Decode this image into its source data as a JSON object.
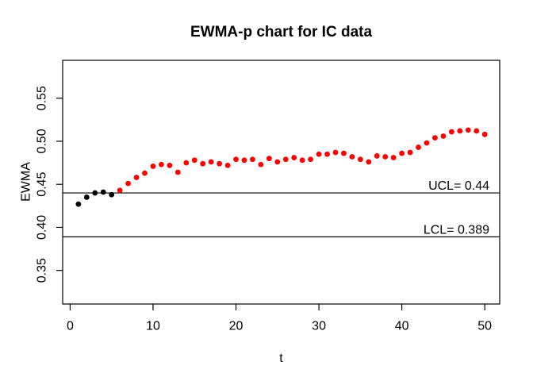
{
  "window": {
    "background": "#ffffff",
    "foreground": "#000000"
  },
  "chart_data": {
    "type": "scatter",
    "title": "EWMA-p chart for IC data",
    "xlabel": "t",
    "ylabel": "EWMA",
    "grid": false,
    "legend": "none",
    "xlim": [
      -0.9,
      51.8
    ],
    "ylim": [
      0.311,
      0.594
    ],
    "x_ticks": [
      {
        "value": 0,
        "label": "0"
      },
      {
        "value": 10,
        "label": "10"
      },
      {
        "value": 20,
        "label": "20"
      },
      {
        "value": 30,
        "label": "30"
      },
      {
        "value": 40,
        "label": "40"
      },
      {
        "value": 50,
        "label": "50"
      }
    ],
    "y_ticks": [
      {
        "value": 0.35,
        "label": "0.35"
      },
      {
        "value": 0.4,
        "label": "0.40"
      },
      {
        "value": 0.45,
        "label": "0.45"
      },
      {
        "value": 0.5,
        "label": "0.50"
      },
      {
        "value": 0.55,
        "label": "0.55"
      }
    ],
    "control_limits": {
      "ucl": {
        "value": 0.44,
        "label": "UCL= 0.44",
        "color": "#000000"
      },
      "lcl": {
        "value": 0.389,
        "label": "LCL= 0.389",
        "color": "#000000"
      }
    },
    "series": [
      {
        "name": "in-control-points",
        "color": "#000000",
        "marker": "filled-circle",
        "x": [
          1,
          2,
          3,
          4,
          5
        ],
        "y": [
          0.427,
          0.435,
          0.44,
          0.441,
          0.438
        ]
      },
      {
        "name": "signal-points",
        "color": "#ff0000",
        "marker": "filled-circle",
        "x": [
          6,
          7,
          8,
          9,
          10,
          11,
          12,
          13,
          14,
          15,
          16,
          17,
          18,
          19,
          20,
          21,
          22,
          23,
          24,
          25,
          26,
          27,
          28,
          29,
          30,
          31,
          32,
          33,
          34,
          35,
          36,
          37,
          38,
          39,
          40,
          41,
          42,
          43,
          44,
          45,
          46,
          47,
          48,
          49,
          50
        ],
        "y": [
          0.443,
          0.451,
          0.458,
          0.463,
          0.471,
          0.473,
          0.472,
          0.464,
          0.475,
          0.478,
          0.474,
          0.476,
          0.474,
          0.472,
          0.479,
          0.478,
          0.479,
          0.473,
          0.48,
          0.476,
          0.479,
          0.481,
          0.478,
          0.479,
          0.485,
          0.485,
          0.487,
          0.486,
          0.482,
          0.479,
          0.476,
          0.483,
          0.482,
          0.481,
          0.486,
          0.487,
          0.493,
          0.498,
          0.504,
          0.506,
          0.511,
          0.512,
          0.513,
          0.512,
          0.508
        ]
      }
    ]
  }
}
